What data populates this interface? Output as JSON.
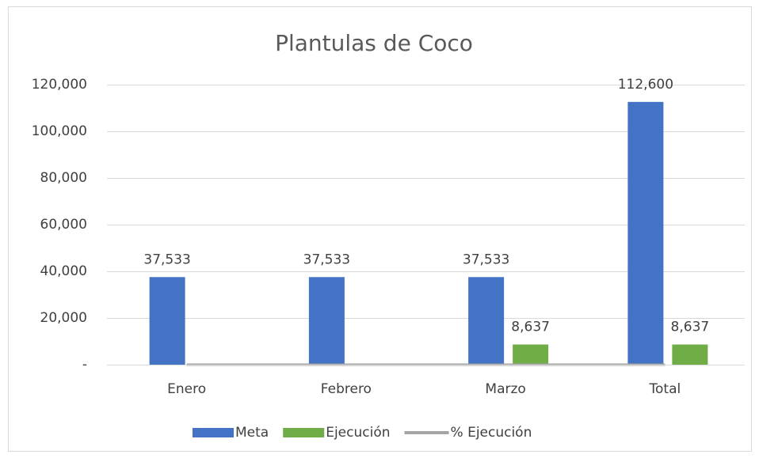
{
  "chart_data": {
    "type": "bar",
    "title": "Plantulas de Coco",
    "categories": [
      "Enero",
      "Febrero",
      "Marzo",
      "Total"
    ],
    "series": [
      {
        "name": "Meta",
        "color": "#4472c4",
        "values": [
          37533,
          37533,
          37533,
          112600
        ],
        "value_labels": [
          "37,533",
          "37,533",
          "37,533",
          "112,600"
        ]
      },
      {
        "name": "Ejecución",
        "color": "#70ad47",
        "values": [
          null,
          null,
          8637,
          8637
        ],
        "value_labels": [
          null,
          null,
          "8,637",
          "8,637"
        ]
      },
      {
        "name": "% Ejecución",
        "type": "line",
        "color": "#a5a5a5",
        "values": [
          0,
          0,
          0,
          0
        ]
      }
    ],
    "ylim": [
      0,
      120000
    ],
    "yticks": [
      {
        "value": 0,
        "label": "-"
      },
      {
        "value": 20000,
        "label": "20,000"
      },
      {
        "value": 40000,
        "label": "40,000"
      },
      {
        "value": 60000,
        "label": "60,000"
      },
      {
        "value": 80000,
        "label": "80,000"
      },
      {
        "value": 100000,
        "label": "100,000"
      },
      {
        "value": 120000,
        "label": "120,000"
      }
    ],
    "grid": true,
    "legend": "bottom"
  }
}
